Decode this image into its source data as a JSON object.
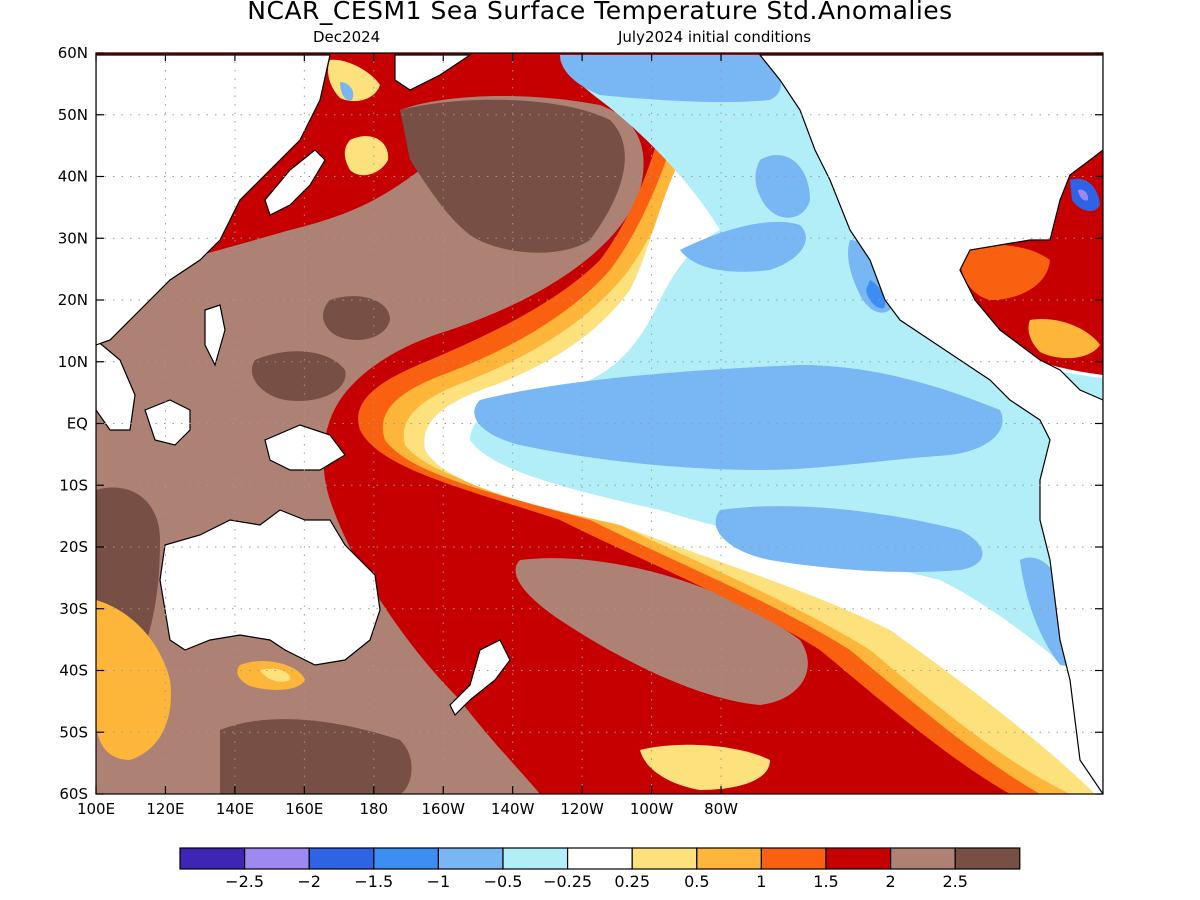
{
  "title": "NCAR_CESM1 Sea Surface Temperature Std.Anomalies",
  "subtitle_left": "Dec2024",
  "subtitle_right": "July2024 initial conditions",
  "y_axis_labels": [
    "60N",
    "50N",
    "40N",
    "30N",
    "20N",
    "10N",
    "EQ",
    "10S",
    "20S",
    "30S",
    "40S",
    "50S",
    "60S"
  ],
  "x_axis_labels": [
    "100E",
    "120E",
    "140E",
    "160E",
    "180",
    "160W",
    "140W",
    "120W",
    "100W",
    "80W"
  ],
  "colorbar": {
    "colors": [
      "#3e25b6",
      "#9e88f2",
      "#2e63e6",
      "#3c8ef2",
      "#79b6f4",
      "#b2eef8",
      "#ffffff",
      "#fde17c",
      "#fdb53a",
      "#f96010",
      "#c60000",
      "#ae8175",
      "#774f44"
    ],
    "labels": [
      "−2.5",
      "−2",
      "−1.5",
      "−1",
      "−0.5",
      "−0.25",
      "0.25",
      "0.5",
      "1",
      "1.5",
      "2",
      "2.5"
    ]
  }
}
